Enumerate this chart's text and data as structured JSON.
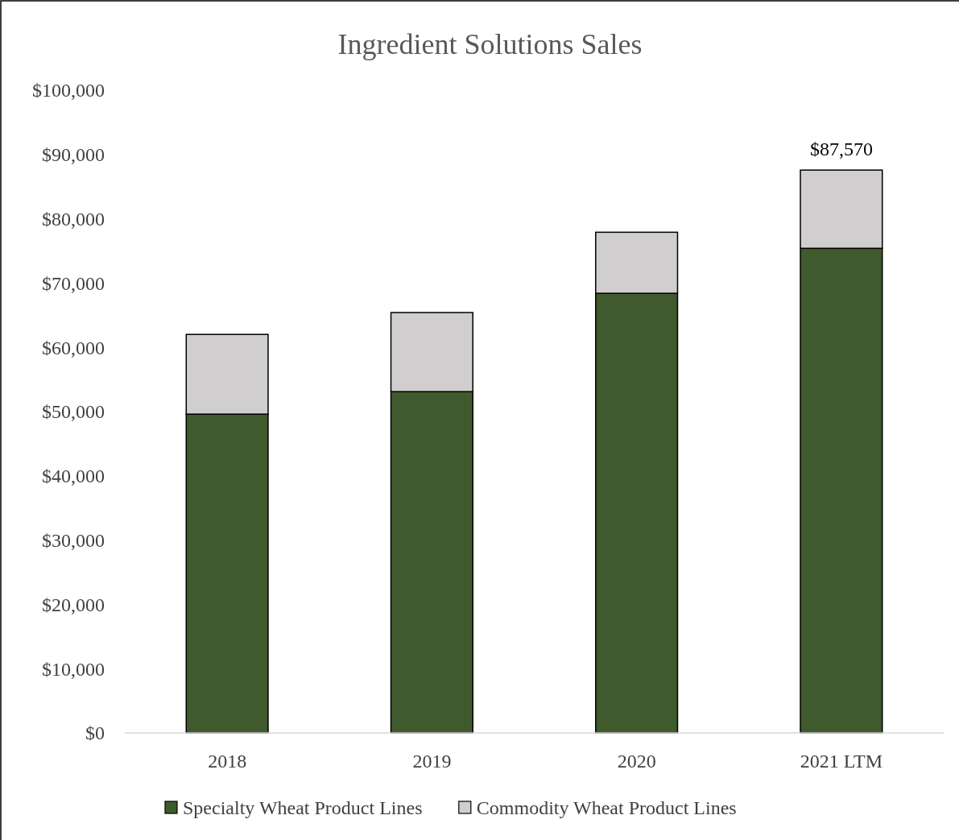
{
  "chart_data": {
    "type": "bar",
    "title": "Ingredient Solutions Sales",
    "categories": [
      "2018",
      "2019",
      "2020",
      "2021 LTM"
    ],
    "stacked": true,
    "series": [
      {
        "name": "Specialty Wheat Product Lines",
        "color": "#3f5a2d",
        "values": [
          49600,
          53100,
          68400,
          75400
        ]
      },
      {
        "name": "Commodity Wheat Product Lines",
        "color": "#d0cece",
        "values": [
          12400,
          12300,
          9500,
          12170
        ]
      }
    ],
    "totals": [
      null,
      null,
      null,
      "$87,570"
    ],
    "ylim": [
      0,
      100000
    ],
    "yticks": [
      {
        "value": 0,
        "label": "$0"
      },
      {
        "value": 10000,
        "label": "$10,000"
      },
      {
        "value": 20000,
        "label": "$20,000"
      },
      {
        "value": 30000,
        "label": "$30,000"
      },
      {
        "value": 40000,
        "label": "$40,000"
      },
      {
        "value": 50000,
        "label": "$50,000"
      },
      {
        "value": 60000,
        "label": "$60,000"
      },
      {
        "value": 70000,
        "label": "$70,000"
      },
      {
        "value": 80000,
        "label": "$80,000"
      },
      {
        "value": 90000,
        "label": "$90,000"
      },
      {
        "value": 100000,
        "label": "$100,000"
      }
    ],
    "grid": false,
    "legend": "bottom"
  }
}
